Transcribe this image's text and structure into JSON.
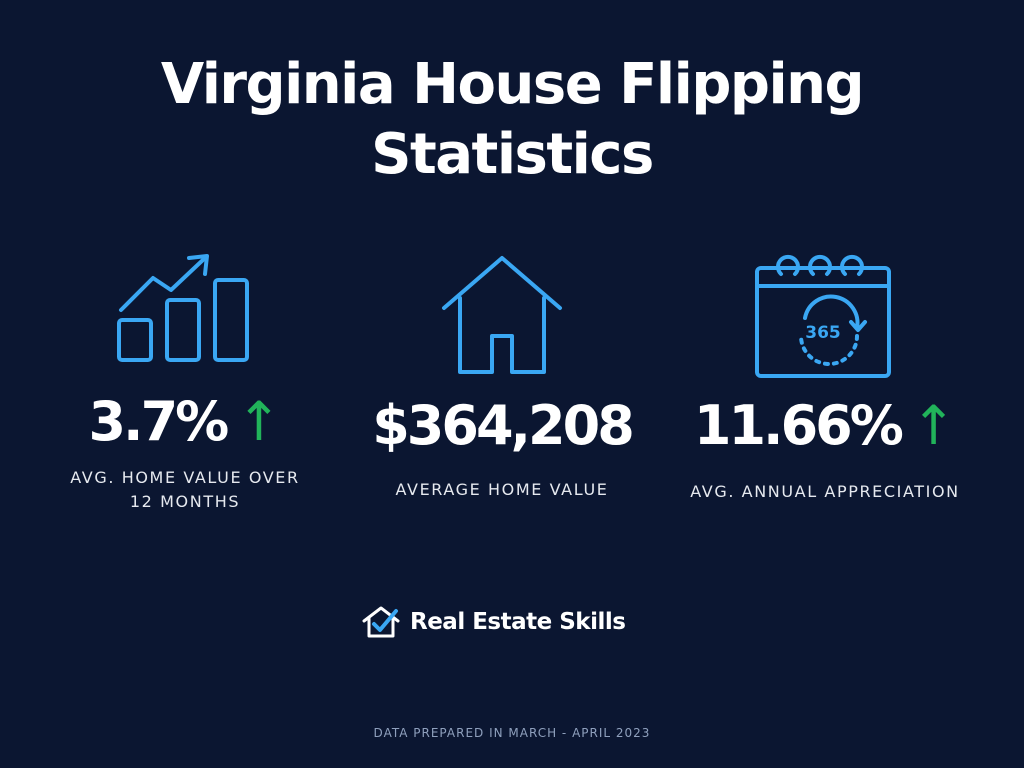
{
  "title": {
    "line1": "Virginia House Flipping",
    "line2": "Statistics"
  },
  "stats": [
    {
      "icon": "bar-chart-growth-icon",
      "value": "3.7%",
      "trend": "↑",
      "label_lines": [
        "AVG. HOME VALUE OVER",
        "12 MONTHS"
      ]
    },
    {
      "icon": "house-icon",
      "value": "$364,208",
      "trend": "",
      "label_lines": [
        "AVERAGE HOME VALUE"
      ]
    },
    {
      "icon": "calendar-365-icon",
      "icon_text": "365",
      "value": "11.66%",
      "trend": "↑",
      "label_lines": [
        "AVG. ANNUAL APPRECIATION"
      ]
    }
  ],
  "brand": {
    "name": "Real Estate Skills",
    "icon": "house-check-logo-icon"
  },
  "footer": "DATA PREPARED IN MARCH - APRIL 2023",
  "colors": {
    "background": "#0b1631",
    "icon_blue": "#3aa7f3",
    "trend_green": "#21b35a",
    "text": "#ffffff"
  }
}
